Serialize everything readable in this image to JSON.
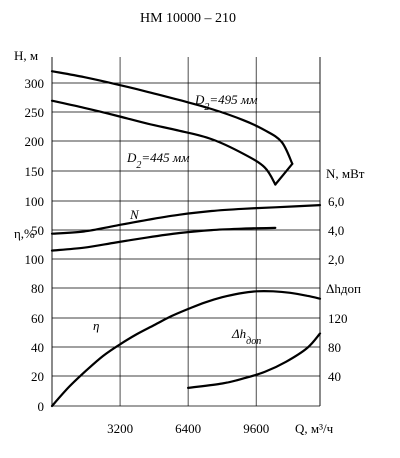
{
  "chart_data": {
    "type": "line",
    "title": "НМ 10000 – 210",
    "xlabel": "Q, м³/ч",
    "xlim": [
      0,
      12600
    ],
    "x_ticks": [
      "3200",
      "6400",
      "9600"
    ],
    "left_axis": {
      "scales": [
        {
          "label": "H, м",
          "lim": [
            0,
            340
          ],
          "ticks": [
            "50",
            "100",
            "150",
            "200",
            "250",
            "300"
          ]
        },
        {
          "label": "η,%",
          "lim": [
            0,
            100
          ],
          "ticks": [
            "0",
            "20",
            "40",
            "60",
            "80",
            "100"
          ]
        }
      ]
    },
    "right_axis": {
      "scales": [
        {
          "label": "N, мВт",
          "lim": [
            0,
            6
          ],
          "ticks": [
            "2,0",
            "4,0",
            "6,0"
          ]
        },
        {
          "label": "Δhдоп",
          "lim": [
            0,
            160
          ],
          "ticks": [
            "40",
            "80",
            "120"
          ]
        }
      ]
    },
    "grid": true,
    "series": [
      {
        "name": "D2=495 мм",
        "axis": "H",
        "label_main": "D",
        "label_sub": "2",
        "label_rest": "=495 мм",
        "x": [
          0,
          1500,
          3000,
          4500,
          6000,
          7500,
          9000,
          10000,
          10800,
          11300
        ],
        "y": [
          320,
          310,
          298,
          285,
          271,
          256,
          237,
          220,
          200,
          163
        ]
      },
      {
        "name": "D2=445 мм",
        "axis": "H",
        "label_main": "D",
        "label_sub": "2",
        "label_rest": "=445 мм",
        "x": [
          0,
          1500,
          3000,
          4500,
          6000,
          7500,
          9000,
          10000,
          10500
        ],
        "y": [
          270,
          258,
          245,
          231,
          219,
          205,
          180,
          157,
          128
        ]
      },
      {
        "name": "H_D2_495_tail",
        "axis": "H",
        "x": [
          10500,
          11300
        ],
        "y": [
          128,
          163
        ]
      },
      {
        "name": "N",
        "axis": "N",
        "x": [
          0,
          1500,
          3000,
          4500,
          6000,
          7500,
          9000,
          10500,
          12600
        ],
        "y": [
          3.7,
          3.85,
          4.25,
          4.65,
          5.0,
          5.25,
          5.4,
          5.5,
          5.65
        ]
      },
      {
        "name": "η_upper",
        "axis": "η_alt",
        "x": [
          0,
          1500,
          3000,
          4500,
          6000,
          7500,
          9000,
          10500
        ],
        "y": [
          2.55,
          2.75,
          3.1,
          3.45,
          3.75,
          3.95,
          4.05,
          4.1
        ]
      },
      {
        "name": "η",
        "axis": "η",
        "x": [
          0,
          800,
          1600,
          2400,
          3200,
          4000,
          4800,
          5600,
          6400,
          7200,
          8000,
          8800,
          9600,
          10400,
          11200,
          12000,
          12600
        ],
        "y": [
          0,
          13,
          24,
          34,
          42,
          49,
          55,
          61,
          66,
          70.5,
          74,
          76.5,
          78,
          78,
          77,
          75,
          73
        ]
      },
      {
        "name": "Δhдоп",
        "axis": "dh",
        "label_main": "Δh",
        "label_sub": "доп",
        "x": [
          6400,
          8000,
          9000,
          10000,
          11000,
          12000,
          12600
        ],
        "y": [
          25,
          31,
          38,
          47,
          61,
          80,
          100
        ]
      }
    ],
    "annotations": {
      "N": "N",
      "eta": "η"
    }
  }
}
